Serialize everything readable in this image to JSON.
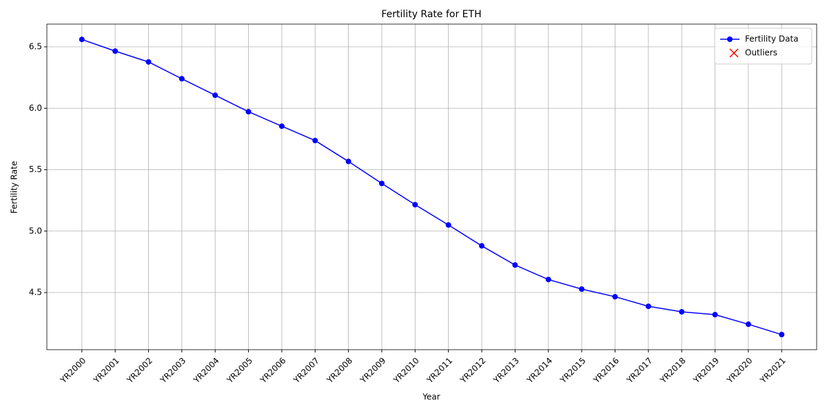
{
  "chart_data": {
    "type": "line",
    "title": "Fertility Rate for ETH",
    "x_label": "Year",
    "y_label": "Fertility Rate",
    "categories": [
      "YR2000",
      "YR2001",
      "YR2002",
      "YR2003",
      "YR2004",
      "YR2005",
      "YR2006",
      "YR2007",
      "YR2008",
      "YR2009",
      "YR2010",
      "YR2011",
      "YR2012",
      "YR2013",
      "YR2014",
      "YR2015",
      "YR2016",
      "YR2017",
      "YR2018",
      "YR2019",
      "YR2020",
      "YR2021"
    ],
    "series": [
      {
        "name": "Fertility Data",
        "color": "#0000ff",
        "marker": "o",
        "values": [
          6.56,
          6.465,
          6.377,
          6.24,
          6.106,
          5.972,
          5.854,
          5.737,
          5.567,
          5.388,
          5.215,
          5.05,
          4.88,
          4.724,
          4.606,
          4.528,
          4.466,
          4.388,
          4.343,
          4.32,
          4.242,
          4.158
        ]
      },
      {
        "name": "Outliers",
        "color": "#ff0000",
        "marker": "x",
        "values": [
          null,
          null,
          null,
          null,
          null,
          null,
          null,
          null,
          null,
          null,
          null,
          null,
          null,
          null,
          null,
          null,
          null,
          null,
          null,
          null,
          null,
          null
        ]
      }
    ],
    "ylim": [
      4.035,
      6.685
    ],
    "yticks": [
      {
        "value": 4.5,
        "label": "4.5"
      },
      {
        "value": 5,
        "label": "5.0"
      },
      {
        "value": 5.5,
        "label": "5.5"
      },
      {
        "value": 6,
        "label": "6.0"
      },
      {
        "value": 6.5,
        "label": "6.5"
      }
    ],
    "grid": true,
    "legend": "upper right"
  }
}
